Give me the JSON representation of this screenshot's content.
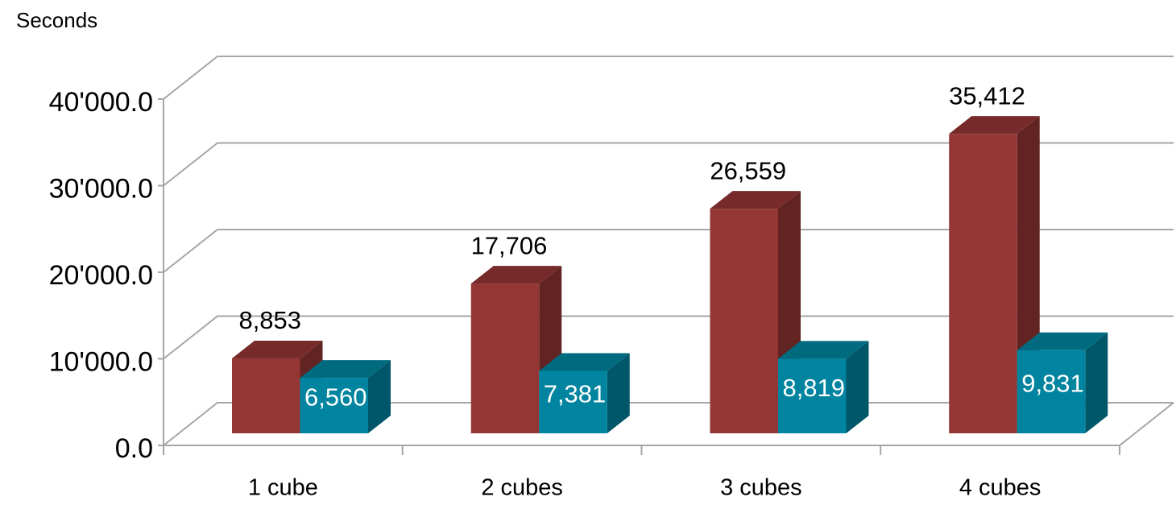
{
  "chart_data": {
    "type": "bar3d",
    "ylabel": "Seconds",
    "categories": [
      "1 cube",
      "2 cubes",
      "3 cubes",
      "4 cubes"
    ],
    "series": [
      {
        "color": "#943634",
        "values": [
          8853,
          17706,
          26559,
          35412
        ],
        "value_labels": [
          "8,853",
          "17,706",
          "26,559",
          "35,412"
        ]
      },
      {
        "color": "#00849f",
        "values": [
          6560,
          7381,
          8819,
          9831
        ],
        "value_labels": [
          "6,560",
          "7,381",
          "8,819",
          "9,831"
        ]
      }
    ],
    "ylim": [
      0,
      40000
    ],
    "yticks": [
      {
        "value": 0,
        "label": "0.0"
      },
      {
        "value": 10000,
        "label": "10'000.0"
      },
      {
        "value": 20000,
        "label": "20'000.0"
      },
      {
        "value": 30000,
        "label": "30'000.0"
      },
      {
        "value": 40000,
        "label": "40'000.0"
      }
    ],
    "grid": true
  }
}
